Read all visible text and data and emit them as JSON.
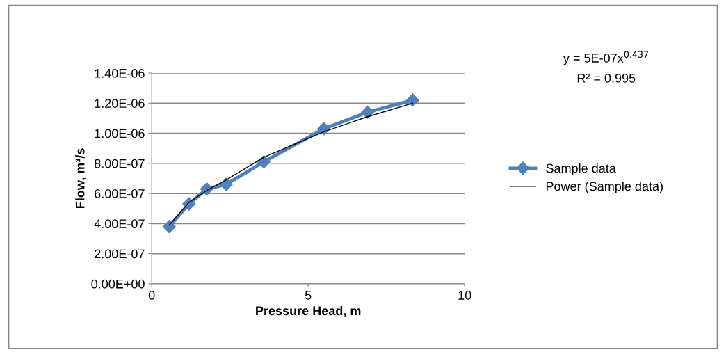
{
  "chart_data": {
    "type": "line",
    "xlabel": "Pressure Head, m",
    "ylabel": "Flow, m³/s",
    "series": [
      {
        "name": "Sample data",
        "color": "#4f81bd",
        "marker": "diamond",
        "line_style": "solid",
        "x": [
          0.56,
          1.19,
          1.76,
          2.38,
          3.58,
          5.5,
          6.9,
          8.34
        ],
        "values": [
          3.8e-07,
          5.3e-07,
          6.3e-07,
          6.6e-07,
          8.1e-07,
          1.03e-06,
          1.14e-06,
          1.22e-06
        ]
      },
      {
        "name": "Power (Sample data)",
        "color": "#000000",
        "marker": "none",
        "line_style": "solid",
        "x": [
          0.56,
          1.19,
          1.76,
          2.38,
          3.58,
          5.5,
          6.9,
          8.34
        ],
        "values": [
          3.9e-07,
          5.4e-07,
          6.2e-07,
          6.9e-07,
          8.4e-07,
          1.01e-06,
          1.11e-06,
          1.2e-06
        ]
      }
    ],
    "xlim": [
      0,
      10
    ],
    "xticks": [
      0,
      5,
      10
    ],
    "ylim": [
      0,
      1.4e-06
    ],
    "yticks": [
      {
        "value": 0,
        "label": "0.00E+00"
      },
      {
        "value": 2e-07,
        "label": "2.00E-07"
      },
      {
        "value": 4e-07,
        "label": "4.00E-07"
      },
      {
        "value": 6e-07,
        "label": "6.00E-07"
      },
      {
        "value": 8e-07,
        "label": "8.00E-07"
      },
      {
        "value": 1e-06,
        "label": "1.00E-06"
      },
      {
        "value": 1.2e-06,
        "label": "1.20E-06"
      },
      {
        "value": 1.4e-06,
        "label": "1.40E-06"
      }
    ],
    "grid": "y",
    "legend": "right",
    "annotations": [
      "y = 5E-07x$^{0.437}$",
      "R² = 0.995"
    ]
  }
}
